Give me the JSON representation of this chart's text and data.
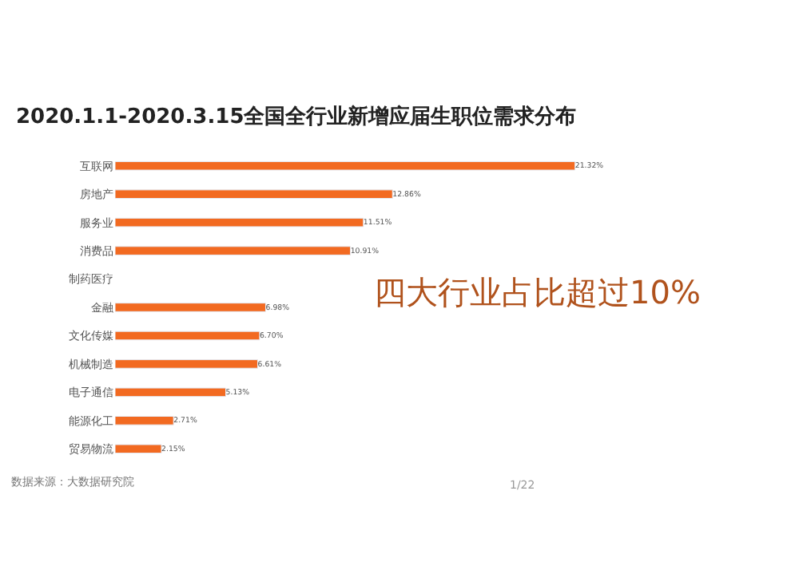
{
  "chart_data": {
    "type": "bar",
    "orientation": "horizontal",
    "title": "2020.1.1-2020.3.15全国全行业新增应届生职位需求分布",
    "categories": [
      "互联网",
      "房地产",
      "服务业",
      "消费品",
      "制药医疗",
      "金融",
      "文化传媒",
      "机械制造",
      "电子通信",
      "能源化工",
      "贸易物流"
    ],
    "values": [
      21.32,
      12.86,
      11.51,
      10.91,
      null,
      6.98,
      6.7,
      6.61,
      5.13,
      2.71,
      2.15
    ],
    "value_labels": [
      "21.32%",
      "12.86%",
      "11.51%",
      "10.91%",
      null,
      "6.98%",
      "6.70%",
      "6.61%",
      "5.13%",
      "2.71%",
      "2.15%"
    ],
    "color": "#f26a21",
    "annotations": [
      "四大行业占比超过10%",
      "数据来源：大数据研究院",
      "1/22"
    ],
    "legend": false
  }
}
